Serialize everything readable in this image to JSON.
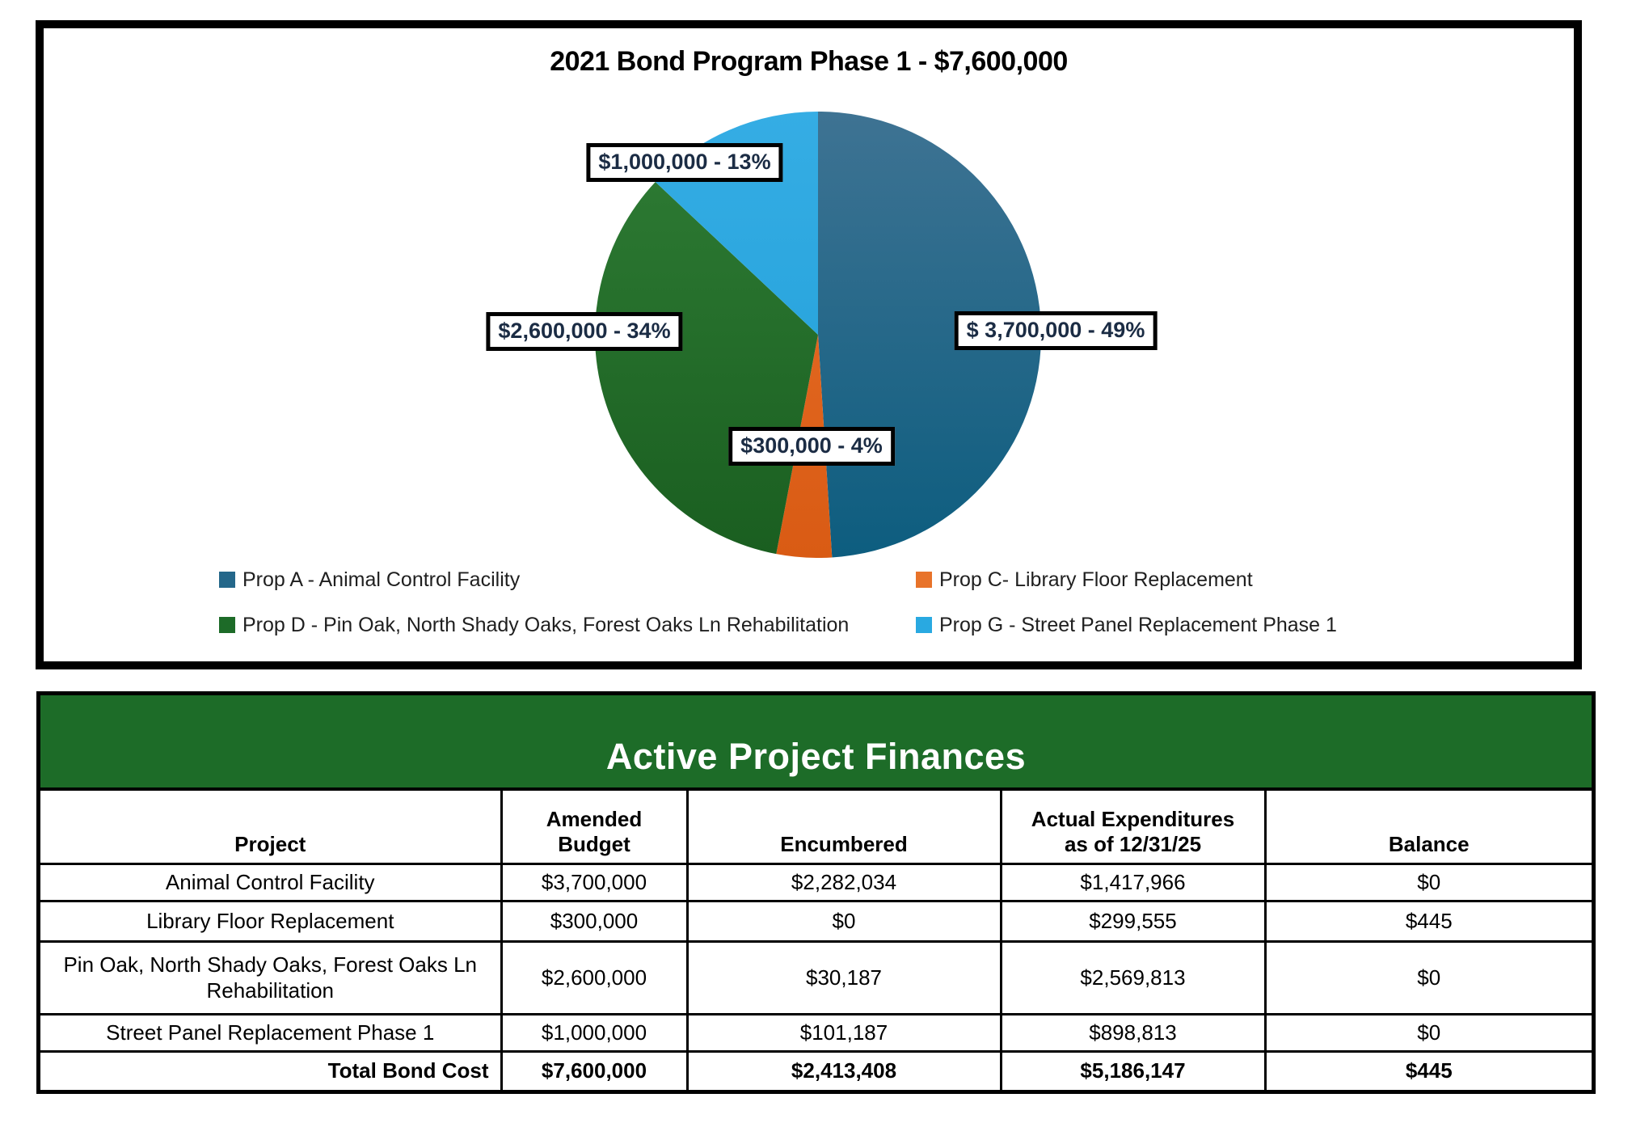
{
  "chart": {
    "title": "2021 Bond Program Phase 1 - $7,600,000"
  },
  "chart_data": {
    "type": "pie",
    "title": "2021 Bond Program Phase 1 - $7,600,000",
    "total_label": "$7,600,000",
    "start_angle_deg": -90,
    "direction": "clockwise",
    "legend_position": "bottom",
    "slices": [
      {
        "name": "Prop A - Animal Control Facility",
        "value": 3700000,
        "pct": 49,
        "label": "$ 3,700,000  - 49%",
        "color_top": "#3e7393",
        "color_bottom": "#0d5d7f",
        "legend_color": "#24678a"
      },
      {
        "name": "Prop C- Library Floor Replacement",
        "value": 300000,
        "pct": 4,
        "label": "$300,000 - 4%",
        "color_top": "#e8702a",
        "color_bottom": "#d95b14",
        "legend_color": "#e8732a"
      },
      {
        "name": "Prop D - Pin Oak, North Shady Oaks, Forest Oaks Ln Rehabilitation",
        "value": 2600000,
        "pct": 34,
        "label": "$2,600,000 -  34%",
        "color_top": "#2f7d35",
        "color_bottom": "#1a5e20",
        "legend_color": "#1d6b28"
      },
      {
        "name": "Prop G - Street Panel Replacement Phase 1",
        "value": 1000000,
        "pct": 13,
        "label": "$1,000,000 - 13%",
        "color_top": "#35ade4",
        "color_bottom": "#1f9ed8",
        "legend_color": "#29a9e1"
      }
    ]
  },
  "table": {
    "banner": "Active Project Finances",
    "banner_color": "#1d6c28",
    "headers": [
      "Project",
      "Amended\nBudget",
      "Encumbered",
      "Actual Expenditures\nas of 12/31/25",
      "Balance"
    ],
    "rows": [
      {
        "project": "Animal Control Facility",
        "amended_budget": "$3,700,000",
        "encumbered": "$2,282,034",
        "actual": "$1,417,966",
        "balance": "$0"
      },
      {
        "project": "Library Floor Replacement",
        "amended_budget": "$300,000",
        "encumbered": "$0",
        "actual": "$299,555",
        "balance": "$445"
      },
      {
        "project": "Pin Oak, North Shady Oaks, Forest Oaks Ln Rehabilitation",
        "amended_budget": "$2,600,000",
        "encumbered": "$30,187",
        "actual": "$2,569,813",
        "balance": "$0"
      },
      {
        "project": "Street Panel Replacement Phase 1",
        "amended_budget": "$1,000,000",
        "encumbered": "$101,187",
        "actual": "$898,813",
        "balance": "$0"
      }
    ],
    "total_row": {
      "label": "Total Bond Cost",
      "amended_budget": "$7,600,000",
      "encumbered": "$2,413,408",
      "actual": "$5,186,147",
      "balance": "$445"
    }
  }
}
